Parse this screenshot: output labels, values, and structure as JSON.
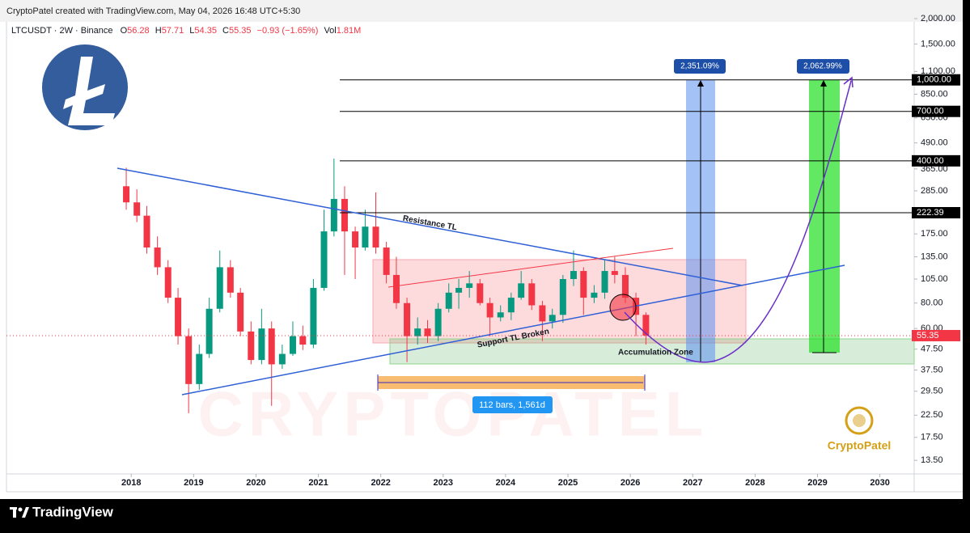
{
  "header": {
    "credit": "CryptoPatel created with TradingView.com, May 04, 2026 16:48 UTC+5:30"
  },
  "legend": {
    "symbol": "LTCUSDT · 2W · Binance",
    "open_label": "O",
    "open": 56.28,
    "high_label": "H",
    "high": 57.71,
    "low_label": "L",
    "low": 54.35,
    "close_label": "C",
    "close": 55.35,
    "change": "−0.93 (−1.65%)",
    "volume_label": "Vol",
    "volume": "1.81M"
  },
  "chart_data": {
    "type": "candlestick",
    "log_scale": true,
    "x": [
      2017.92,
      2018.09,
      2018.25,
      2018.42,
      2018.59,
      2018.75,
      2018.92,
      2019.09,
      2019.25,
      2019.42,
      2019.59,
      2019.75,
      2019.92,
      2020.09,
      2020.25,
      2020.42,
      2020.59,
      2020.75,
      2020.92,
      2021.09,
      2021.25,
      2021.42,
      2021.59,
      2021.75,
      2021.92,
      2022.09,
      2022.25,
      2022.42,
      2022.59,
      2022.75,
      2022.92,
      2023.09,
      2023.25,
      2023.42,
      2023.59,
      2023.75,
      2023.92,
      2024.09,
      2024.25,
      2024.42,
      2024.59,
      2024.75,
      2024.92,
      2025.09,
      2025.25,
      2025.42,
      2025.59,
      2025.75,
      2025.92,
      2026.09,
      2026.25
    ],
    "open": [
      300,
      250,
      215,
      150,
      120,
      85,
      55,
      32,
      45,
      75,
      120,
      90,
      58,
      42,
      60,
      40,
      45,
      55,
      50,
      95,
      180,
      260,
      180,
      150,
      190,
      150,
      110,
      80,
      55,
      60,
      55,
      75,
      90,
      95,
      100,
      80,
      68,
      72,
      85,
      100,
      78,
      65,
      70,
      105,
      115,
      85,
      90,
      115,
      110,
      85,
      70
    ],
    "high": [
      370,
      290,
      240,
      170,
      130,
      95,
      60,
      50,
      85,
      145,
      130,
      95,
      65,
      75,
      65,
      50,
      65,
      62,
      105,
      230,
      410,
      300,
      190,
      230,
      280,
      160,
      135,
      85,
      68,
      66,
      80,
      100,
      105,
      115,
      105,
      85,
      78,
      90,
      115,
      105,
      82,
      75,
      110,
      145,
      120,
      98,
      130,
      135,
      120,
      90,
      72
    ],
    "low": [
      230,
      200,
      140,
      110,
      80,
      50,
      23,
      30,
      43,
      72,
      85,
      55,
      40,
      40,
      25,
      38,
      44,
      47,
      48,
      92,
      170,
      110,
      105,
      145,
      140,
      100,
      75,
      41,
      50,
      51,
      52,
      72,
      75,
      85,
      78,
      55,
      65,
      66,
      83,
      74,
      52,
      60,
      64,
      97,
      70,
      80,
      84,
      100,
      80,
      55,
      50
    ],
    "close": [
      250,
      215,
      150,
      120,
      85,
      55,
      32,
      45,
      75,
      120,
      90,
      58,
      42,
      60,
      40,
      45,
      55,
      50,
      95,
      180,
      260,
      180,
      150,
      190,
      150,
      110,
      80,
      55,
      60,
      55,
      75,
      90,
      95,
      100,
      80,
      68,
      72,
      85,
      100,
      78,
      65,
      70,
      105,
      115,
      85,
      90,
      115,
      110,
      85,
      70,
      55.35
    ],
    "up_color": "#089981",
    "down_color": "#f23645",
    "xlim": [
      2016,
      2030.55
    ],
    "xticks": [
      2018,
      2019,
      2020,
      2021,
      2022,
      2023,
      2024,
      2025,
      2026,
      2027,
      2028,
      2029,
      2030
    ],
    "ylim": [
      12,
      2000
    ],
    "yticks": [
      {
        "value": 2000,
        "label": "2,000.00"
      },
      {
        "value": 1500,
        "label": "1,500.00"
      },
      {
        "value": 1100,
        "label": "1,100.00"
      },
      {
        "value": 850,
        "label": "850.00"
      },
      {
        "value": 650,
        "label": "650.00"
      },
      {
        "value": 490,
        "label": "490.00"
      },
      {
        "value": 365,
        "label": "365.00"
      },
      {
        "value": 285,
        "label": "285.00"
      },
      {
        "value": 175,
        "label": "175.00"
      },
      {
        "value": 135,
        "label": "135.00"
      },
      {
        "value": 105,
        "label": "105.00"
      },
      {
        "value": 80,
        "label": "80.00"
      },
      {
        "value": 60,
        "label": "60.00"
      },
      {
        "value": 47.5,
        "label": "47.50"
      },
      {
        "value": 37.5,
        "label": "37.50"
      },
      {
        "value": 29.5,
        "label": "29.50"
      },
      {
        "value": 22.5,
        "label": "22.50"
      },
      {
        "value": 17.5,
        "label": "17.50"
      },
      {
        "value": 13.5,
        "label": "13.50"
      }
    ],
    "levels": [
      {
        "value": 1000,
        "label": "1,000.00"
      },
      {
        "value": 700,
        "label": "700.00"
      },
      {
        "value": 400,
        "label": "400.00"
      },
      222.39
    ],
    "last_price": 55.35
  },
  "annotations": {
    "resistance": "Resistance TL",
    "support": "Support TL Broken",
    "zone": "Accumulation Zone",
    "range": "112 bars, 1,561d",
    "gain_1": "2,351.09%",
    "gain_2": "2,062.99%"
  },
  "branding": {
    "watermark": "CRYPTOPATEL",
    "logo_text": "CryptoPatel",
    "footer": "TradingView"
  }
}
